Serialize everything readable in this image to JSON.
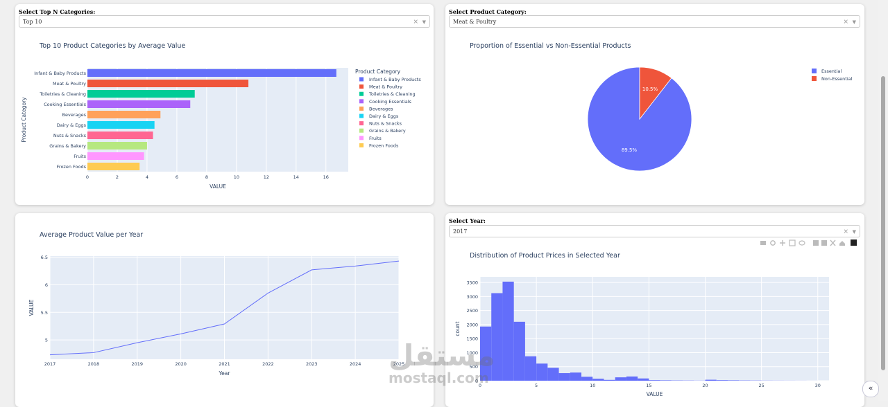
{
  "controls": {
    "topn_label": "Select Top N Categories:",
    "topn_value": "Top 10",
    "category_label": "Select Product Category:",
    "category_value": "Meat & Poultry",
    "year_label": "Select Year:",
    "year_value": "2017"
  },
  "watermark": {
    "line1": "مستقل",
    "line2": "mostaql.com"
  },
  "colors": {
    "plot_bg": "#e5ecf6",
    "primary": "#636efa"
  },
  "chart_data": [
    {
      "type": "bar",
      "orientation": "horizontal",
      "title": "Top 10 Product Categories by Average Value",
      "xlabel": "VALUE",
      "ylabel": "Product Category",
      "legend_title": "Product Category",
      "legend": "right",
      "categories": [
        "Infant & Baby Products",
        "Meat & Poultry",
        "Toiletries & Cleaning",
        "Cooking Essentials",
        "Beverages",
        "Dairy & Eggs",
        "Nuts & Snacks",
        "Grains & Bakery",
        "Fruits",
        "Frozen Foods"
      ],
      "values": [
        16.7,
        10.8,
        7.2,
        6.9,
        4.9,
        4.5,
        4.4,
        4.0,
        3.8,
        3.5
      ],
      "colors": [
        "#636efa",
        "#ef553b",
        "#00cc96",
        "#ab63fa",
        "#ffa15a",
        "#19d3f3",
        "#ff6692",
        "#b6e880",
        "#ff97ff",
        "#fecb52"
      ],
      "xticks": [
        "0",
        "2",
        "4",
        "6",
        "8",
        "10",
        "12",
        "14",
        "16"
      ],
      "xlim": [
        0,
        17.5
      ]
    },
    {
      "type": "pie",
      "title": "Proportion of Essential vs Non-Essential Products",
      "legend": "right",
      "labels": [
        "Essential",
        "Non-Essential"
      ],
      "values": [
        89.5,
        10.5
      ],
      "value_labels": [
        "89.5%",
        "10.5%"
      ],
      "colors": [
        "#636efa",
        "#ef553b"
      ]
    },
    {
      "type": "line",
      "title": "Average Product Value per Year",
      "xlabel": "Year",
      "ylabel": "VALUE",
      "x": [
        2017,
        2018,
        2019,
        2020,
        2021,
        2022,
        2023,
        2024,
        2025
      ],
      "y": [
        4.73,
        4.77,
        4.95,
        5.11,
        5.29,
        5.85,
        6.27,
        6.34,
        6.43
      ],
      "xticks": [
        "2017",
        "2018",
        "2019",
        "2020",
        "2021",
        "2022",
        "2023",
        "2024",
        "2025"
      ],
      "yticks": [
        {
          "v": 5,
          "label": "5"
        },
        {
          "v": 5.5,
          "label": "5.5"
        },
        {
          "v": 6,
          "label": "6"
        },
        {
          "v": 6.5,
          "label": "6.5"
        }
      ],
      "ylim": [
        4.65,
        6.52
      ],
      "color": "#636efa"
    },
    {
      "type": "bar",
      "subtype": "histogram",
      "title": "Distribution of Product Prices in Selected Year",
      "xlabel": "VALUE",
      "ylabel": "count",
      "bin_width": 1,
      "bin_start": 0,
      "values": [
        1930,
        3120,
        3530,
        2100,
        870,
        610,
        460,
        270,
        290,
        140,
        70,
        30,
        120,
        150,
        80,
        20,
        15,
        10,
        8,
        5,
        35,
        20,
        15,
        10,
        8,
        5,
        4,
        3,
        2,
        1
      ],
      "xticks": [
        "0",
        "5",
        "10",
        "15",
        "20",
        "25",
        "30"
      ],
      "yticks": [
        {
          "v": 0,
          "label": "0"
        },
        {
          "v": 500,
          "label": "500"
        },
        {
          "v": 1000,
          "label": "1000"
        },
        {
          "v": 1500,
          "label": "1500"
        },
        {
          "v": 2000,
          "label": "2000"
        },
        {
          "v": 2500,
          "label": "2500"
        },
        {
          "v": 3000,
          "label": "3000"
        },
        {
          "v": 3500,
          "label": "3500"
        }
      ],
      "xlim": [
        0,
        31
      ],
      "ylim": [
        0,
        3700
      ],
      "color": "#636efa"
    }
  ]
}
